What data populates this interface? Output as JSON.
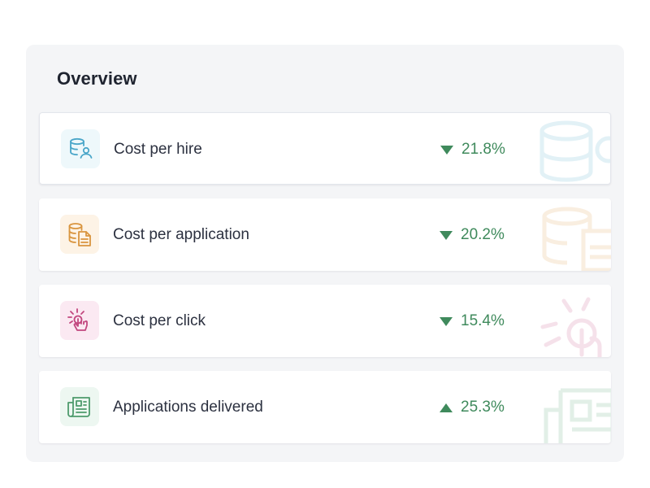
{
  "overview": {
    "title": "Overview",
    "metrics": [
      {
        "label": "Cost per hire",
        "change": "21.8%",
        "direction": "down",
        "icon": "database-user-icon",
        "icon_color": "#4aa6c9",
        "icon_bg": "#eef8fb"
      },
      {
        "label": "Cost per application",
        "change": "20.2%",
        "direction": "down",
        "icon": "database-document-icon",
        "icon_color": "#d9953f",
        "icon_bg": "#fdf3e6"
      },
      {
        "label": "Cost per click",
        "change": "15.4%",
        "direction": "down",
        "icon": "click-hand-icon",
        "icon_color": "#c2477f",
        "icon_bg": "#fbe9f2"
      },
      {
        "label": "Applications delivered",
        "change": "25.3%",
        "direction": "up",
        "icon": "newspaper-icon",
        "icon_color": "#4d9a6c",
        "icon_bg": "#edf7f1"
      }
    ],
    "trend_color": "#3f8a5c"
  }
}
